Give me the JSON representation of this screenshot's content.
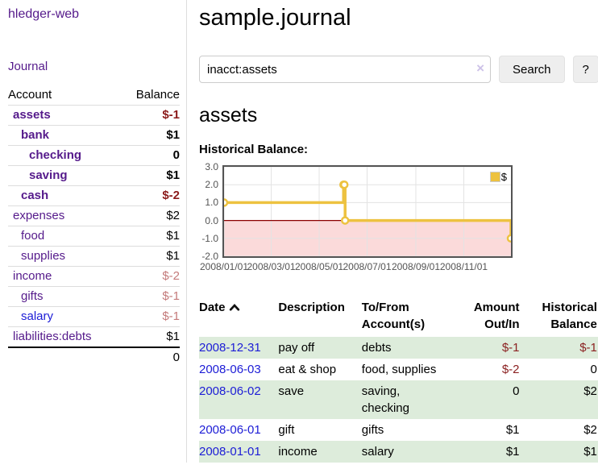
{
  "app": {
    "brand": "hledger-web",
    "nav_journal": "Journal"
  },
  "sidebar": {
    "headers": {
      "account": "Account",
      "balance": "Balance"
    },
    "accounts": [
      {
        "name": "assets",
        "indent": 1,
        "bold": true,
        "balance": "$-1"
      },
      {
        "name": "bank",
        "indent": 2,
        "bold": true,
        "balance": "$1"
      },
      {
        "name": "checking",
        "indent": 3,
        "bold": true,
        "balance": "0"
      },
      {
        "name": "saving",
        "indent": 3,
        "bold": true,
        "balance": "$1"
      },
      {
        "name": "cash",
        "indent": 2,
        "bold": true,
        "balance": "$-2"
      },
      {
        "name": "expenses",
        "indent": 1,
        "bold": false,
        "balance": "$2"
      },
      {
        "name": "food",
        "indent": 2,
        "bold": false,
        "balance": "$1"
      },
      {
        "name": "supplies",
        "indent": 2,
        "bold": false,
        "balance": "$1"
      },
      {
        "name": "income",
        "indent": 1,
        "bold": false,
        "balance": "$-2"
      },
      {
        "name": "gifts",
        "indent": 2,
        "bold": false,
        "balance": "$-1"
      },
      {
        "name": "salary",
        "indent": 2,
        "bold": false,
        "balance": "$-1",
        "blue": true
      },
      {
        "name": "liabilities:debts",
        "indent": 1,
        "bold": false,
        "balance": "$1"
      }
    ],
    "total": "0"
  },
  "header": {
    "title": "sample.journal"
  },
  "search": {
    "value": "inacct:assets",
    "clear_icon": "×",
    "button": "Search",
    "help": "?"
  },
  "account_page": {
    "title": "assets",
    "chart_label": "Historical Balance:"
  },
  "chart_data": {
    "type": "line",
    "title": "Historical Balance:",
    "step": true,
    "series": [
      {
        "name": "$",
        "points": [
          [
            "2008-01-01",
            1
          ],
          [
            "2008-06-01",
            2
          ],
          [
            "2008-06-02",
            2
          ],
          [
            "2008-06-03",
            0
          ],
          [
            "2008-12-31",
            -1
          ]
        ]
      }
    ],
    "ylim": [
      -2.0,
      3.0
    ],
    "yticks": [
      "3.0",
      "2.0",
      "1.0",
      "0.0",
      "-1.0",
      "-2.0"
    ],
    "xticks": [
      "2008/01/01",
      "2008/03/01",
      "2008/05/01",
      "2008/07/01",
      "2008/09/01",
      "2008/11/01"
    ],
    "xrange": [
      "2008-01-01",
      "2008-12-31"
    ],
    "grid": true,
    "legend_position": "top-right",
    "legend": "$"
  },
  "register": {
    "headers": {
      "date": "Date",
      "description": "Description",
      "account": "To/From Account(s)",
      "amount": "Amount Out/In",
      "balance": "Historical Balance"
    },
    "rows": [
      {
        "date": "2008-12-31",
        "description": "pay off",
        "accounts": "debts",
        "amount": "$-1",
        "balance": "$-1"
      },
      {
        "date": "2008-06-03",
        "description": "eat & shop",
        "accounts": "food, supplies",
        "amount": "$-2",
        "balance": "0"
      },
      {
        "date": "2008-06-02",
        "description": "save",
        "accounts": "saving, checking",
        "amount": "0",
        "balance": "$2"
      },
      {
        "date": "2008-06-01",
        "description": "gift",
        "accounts": "gifts",
        "amount": "$1",
        "balance": "$2"
      },
      {
        "date": "2008-01-01",
        "description": "income",
        "accounts": "salary",
        "amount": "$1",
        "balance": "$1"
      }
    ]
  },
  "colors": {
    "link_purple": "#551a8b",
    "link_blue": "#1c1cd6",
    "neg_strong": "#8b1a1a",
    "neg_soft": "#c47a7a",
    "table_neg": "#8b2121",
    "row_shade": "#ddecdb",
    "chart_line": "#edc240",
    "chart_negative_fill": "#fbdada",
    "chart_zero_line": "#8b0000"
  }
}
